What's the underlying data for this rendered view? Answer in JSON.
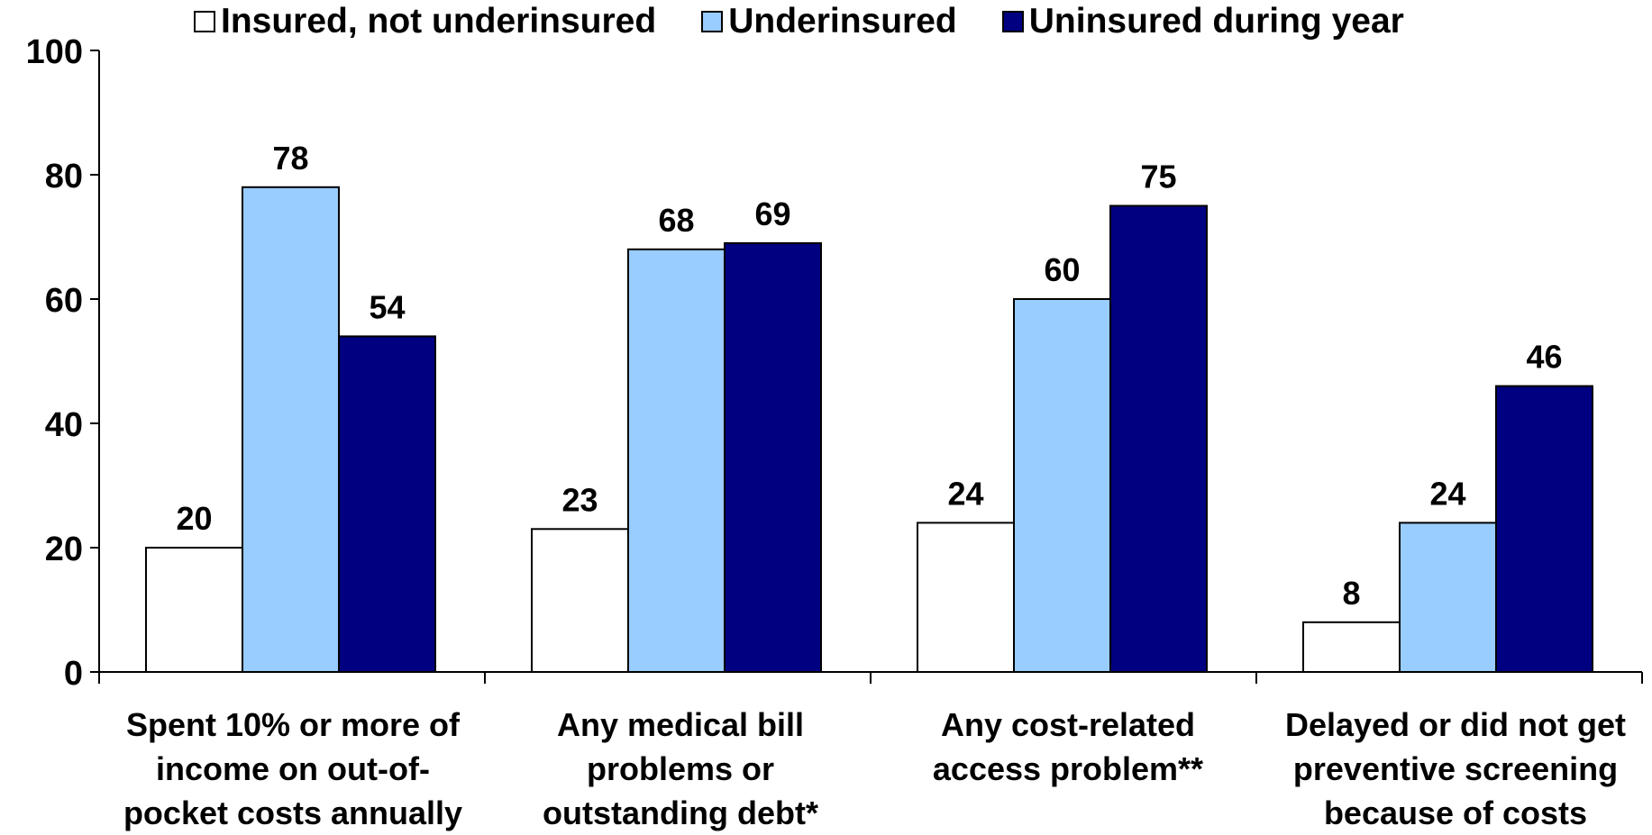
{
  "chart_data": {
    "type": "bar",
    "categories": [
      [
        "Spent 10% or more of",
        "income on out-of-",
        "pocket costs annually"
      ],
      [
        "Any medical bill",
        "problems or",
        "outstanding debt*"
      ],
      [
        "Any cost-related",
        "access problem**"
      ],
      [
        "Delayed or did not get",
        "preventive screening",
        "because of costs"
      ]
    ],
    "series": [
      {
        "name": "Insured, not underinsured",
        "color": "#FFFFFF",
        "values": [
          20,
          23,
          24,
          8
        ]
      },
      {
        "name": "Underinsured",
        "color": "#99CCFF",
        "values": [
          78,
          68,
          60,
          24
        ]
      },
      {
        "name": "Uninsured during year",
        "color": "#000080",
        "values": [
          54,
          69,
          75,
          46
        ]
      }
    ],
    "ylim": [
      0,
      100
    ],
    "yticks": [
      "0",
      "20",
      "40",
      "60",
      "80",
      "100"
    ],
    "legend_position": "top",
    "grid": false
  }
}
